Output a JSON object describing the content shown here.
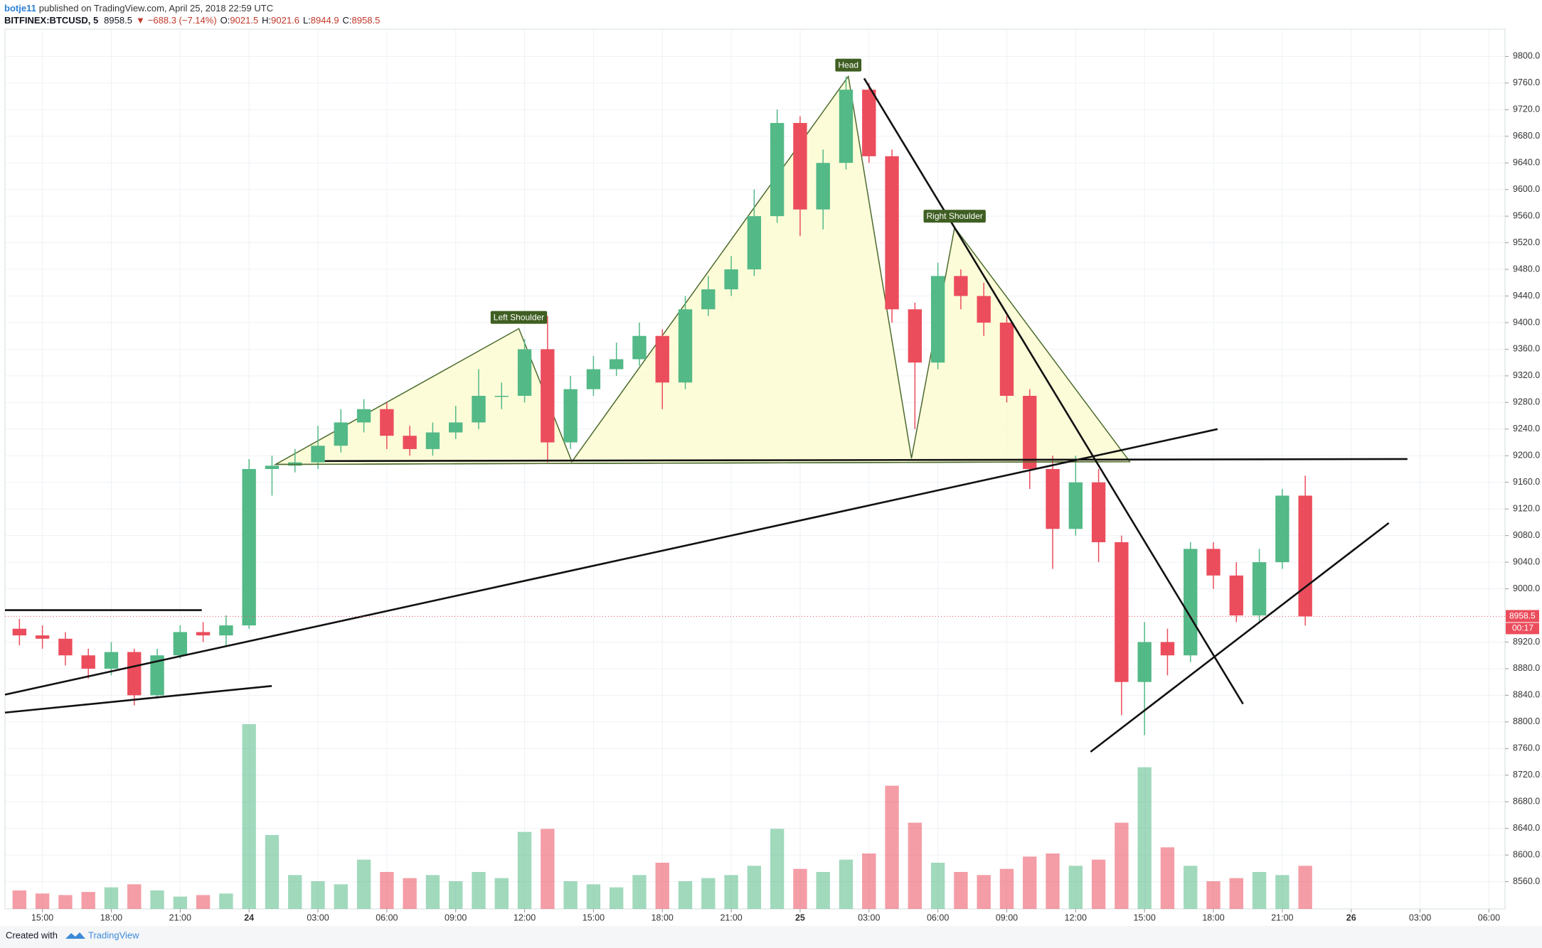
{
  "header": {
    "author": "botje11",
    "published": "published on TradingView.com, April 25, 2018 22:59 UTC",
    "symbol": "BITFINEX:BTCUSD, 5",
    "last": "8958.5",
    "arrow": "▼",
    "change": "−688.3 (−7.14%)",
    "ohlc": [
      {
        "label": "O:",
        "value": "9021.5"
      },
      {
        "label": "H:",
        "value": "9021.6"
      },
      {
        "label": "L:",
        "value": "8944.9"
      },
      {
        "label": "C:",
        "value": "8958.5"
      }
    ]
  },
  "footer": {
    "created": "Created with",
    "brand": "TradingView"
  },
  "chart_data": {
    "type": "candlestick",
    "x": [
      14,
      15,
      16,
      17,
      18,
      19,
      20,
      21,
      22,
      23,
      24,
      25,
      26,
      27,
      28,
      29,
      30,
      31,
      32,
      33,
      34,
      35,
      36,
      37,
      38,
      39,
      40,
      41,
      42,
      43,
      44,
      45,
      46,
      47,
      48,
      49,
      50,
      51,
      52,
      53,
      54,
      55,
      56,
      57,
      58,
      59,
      60,
      61,
      62,
      63,
      64,
      65,
      66,
      67,
      68,
      69,
      70
    ],
    "open": [
      8940,
      8930,
      8925,
      8900,
      8880,
      8905,
      8840,
      8900,
      8935,
      8930,
      8945,
      9180,
      9185,
      9190,
      9215,
      9250,
      9270,
      9230,
      9210,
      9235,
      9250,
      9290,
      9290,
      9360,
      9220,
      9300,
      9330,
      9345,
      9380,
      9310,
      9420,
      9450,
      9480,
      9560,
      9700,
      9570,
      9640,
      9750,
      9650,
      9420,
      9340,
      9470,
      9440,
      9400,
      9290,
      9180,
      9090,
      9160,
      9070,
      8860,
      8920,
      8900,
      9060,
      9020,
      8960,
      9040,
      9140
    ],
    "high": [
      8955,
      8945,
      8935,
      8910,
      8920,
      8910,
      8910,
      8945,
      8950,
      8960,
      9195,
      9200,
      9210,
      9245,
      9270,
      9285,
      9280,
      9245,
      9250,
      9275,
      9330,
      9310,
      9375,
      9410,
      9320,
      9350,
      9370,
      9400,
      9390,
      9440,
      9470,
      9500,
      9600,
      9720,
      9710,
      9660,
      9770,
      9760,
      9660,
      9430,
      9490,
      9480,
      9460,
      9410,
      9300,
      9200,
      9200,
      9180,
      9080,
      8950,
      8940,
      9070,
      9070,
      9040,
      9060,
      9150,
      9170
    ],
    "low": [
      8915,
      8910,
      8885,
      8865,
      8870,
      8825,
      8835,
      8895,
      8920,
      8915,
      8940,
      9140,
      9175,
      9180,
      9205,
      9235,
      9210,
      9200,
      9200,
      9225,
      9240,
      9270,
      9280,
      9190,
      9210,
      9290,
      9320,
      9335,
      9270,
      9300,
      9410,
      9440,
      9470,
      9550,
      9530,
      9540,
      9630,
      9640,
      9400,
      9240,
      9330,
      9420,
      9380,
      9280,
      9150,
      9030,
      9080,
      9040,
      8810,
      8780,
      8870,
      8890,
      9000,
      8950,
      8950,
      9030,
      8945
    ],
    "close": [
      8930,
      8925,
      8900,
      8880,
      8905,
      8840,
      8900,
      8935,
      8930,
      8945,
      9180,
      9185,
      9190,
      9215,
      9250,
      9270,
      9230,
      9210,
      9235,
      9250,
      9290,
      9290,
      9360,
      9220,
      9300,
      9330,
      9345,
      9380,
      9310,
      9420,
      9450,
      9480,
      9560,
      9700,
      9570,
      9640,
      9750,
      9650,
      9420,
      9340,
      9470,
      9440,
      9400,
      9290,
      9180,
      9090,
      9160,
      9070,
      8860,
      8920,
      8900,
      9060,
      9020,
      8960,
      9040,
      9140,
      8958.5
    ],
    "volume": [
      60,
      50,
      45,
      55,
      70,
      80,
      60,
      40,
      45,
      50,
      600,
      240,
      110,
      90,
      80,
      160,
      120,
      100,
      110,
      90,
      120,
      100,
      250,
      260,
      90,
      80,
      70,
      110,
      150,
      90,
      100,
      110,
      140,
      260,
      130,
      120,
      160,
      180,
      400,
      280,
      150,
      120,
      110,
      130,
      170,
      180,
      140,
      160,
      280,
      460,
      200,
      140,
      90,
      100,
      120,
      110,
      140
    ],
    "up_color": "#53b987",
    "down_color": "#eb4d5c",
    "xlim": [
      13.37,
      78.7
    ],
    "xticks": [
      {
        "value": 15,
        "label": "15:00"
      },
      {
        "value": 18,
        "label": "18:00"
      },
      {
        "value": 21,
        "label": "21:00"
      },
      24,
      {
        "value": 27,
        "label": "03:00"
      },
      {
        "value": 30,
        "label": "06:00"
      },
      {
        "value": 33,
        "label": "09:00"
      },
      {
        "value": 36,
        "label": "12:00"
      },
      {
        "value": 39,
        "label": "15:00"
      },
      {
        "value": 42,
        "label": "18:00"
      },
      {
        "value": 45,
        "label": "21:00"
      },
      {
        "value": 48,
        "label": "25"
      },
      {
        "value": 51,
        "label": "03:00"
      },
      {
        "value": 54,
        "label": "06:00"
      },
      {
        "value": 57,
        "label": "09:00"
      },
      {
        "value": 60,
        "label": "12:00"
      },
      {
        "value": 63,
        "label": "15:00"
      },
      {
        "value": 66,
        "label": "18:00"
      },
      {
        "value": 69,
        "label": "21:00"
      },
      {
        "value": 72,
        "label": "26"
      },
      {
        "value": 75,
        "label": "03:00"
      },
      {
        "value": 78,
        "label": "06:00"
      }
    ],
    "ylim": [
      8519,
      9841
    ],
    "yticks": [
      {
        "value": 8560,
        "label": "8560.0"
      },
      {
        "value": 8600,
        "label": "8600.0"
      },
      {
        "value": 8640,
        "label": "8640.0"
      },
      {
        "value": 8680,
        "label": "8680.0"
      },
      {
        "value": 8720,
        "label": "8720.0"
      },
      {
        "value": 8760,
        "label": "8760.0"
      },
      {
        "value": 8800,
        "label": "8800.0"
      },
      {
        "value": 8840,
        "label": "8840.0"
      },
      {
        "value": 8880,
        "label": "8880.0"
      },
      {
        "value": 8920,
        "label": "8920.0"
      },
      {
        "value": 9000,
        "label": "9000.0"
      },
      {
        "value": 9040,
        "label": "9040.0"
      },
      {
        "value": 9080,
        "label": "9080.0"
      },
      {
        "value": 9120,
        "label": "9120.0"
      },
      {
        "value": 9160,
        "label": "9160.0"
      },
      {
        "value": 9200,
        "label": "9200.0"
      },
      {
        "value": 9240,
        "label": "9240.0"
      },
      {
        "value": 9280,
        "label": "9280.0"
      },
      {
        "value": 9320,
        "label": "9320.0"
      },
      {
        "value": 9360,
        "label": "9360.0"
      },
      {
        "value": 9400,
        "label": "9400.0"
      },
      {
        "value": 9440,
        "label": "9440.0"
      },
      {
        "value": 9480,
        "label": "9480.0"
      },
      {
        "value": 9520,
        "label": "9520.0"
      },
      {
        "value": 9560,
        "label": "9560.0"
      },
      {
        "value": 9600,
        "label": "9600.0"
      },
      {
        "value": 9640,
        "label": "9640.0"
      },
      {
        "value": 9680,
        "label": "9680.0"
      },
      {
        "value": 9720,
        "label": "9720.0"
      },
      {
        "value": 9760,
        "label": "9760.0"
      },
      {
        "value": 9800,
        "label": "9800.0"
      }
    ],
    "grid": true,
    "last_price": 8958.5,
    "countdown": "00:17",
    "drawings": [
      {
        "points": [
          [
            13.37,
            8968
          ],
          [
            21.94,
            8968
          ]
        ]
      },
      {
        "points": [
          [
            27.3,
            9192
          ],
          [
            74.45,
            9195
          ]
        ]
      },
      {
        "points": [
          [
            13.37,
            8841
          ],
          [
            66.18,
            9240
          ]
        ]
      },
      {
        "points": [
          [
            13.37,
            8814
          ],
          [
            24.99,
            8854
          ]
        ]
      },
      {
        "points": [
          [
            50.79,
            9767
          ],
          [
            67.29,
            8827
          ]
        ]
      },
      {
        "points": [
          [
            60.65,
            8755
          ],
          [
            73.64,
            9099
          ]
        ]
      }
    ],
    "pattern": {
      "points": [
        [
          25.16,
          9187
        ],
        [
          35.75,
          9391
        ],
        [
          38.06,
          9191
        ],
        [
          50.1,
          9770
        ],
        [
          52.85,
          9196
        ],
        [
          54.73,
          9543
        ],
        [
          62.36,
          9191
        ]
      ],
      "labels": [
        "Left Shoulder",
        "Head",
        "Right Shoulder"
      ]
    }
  }
}
